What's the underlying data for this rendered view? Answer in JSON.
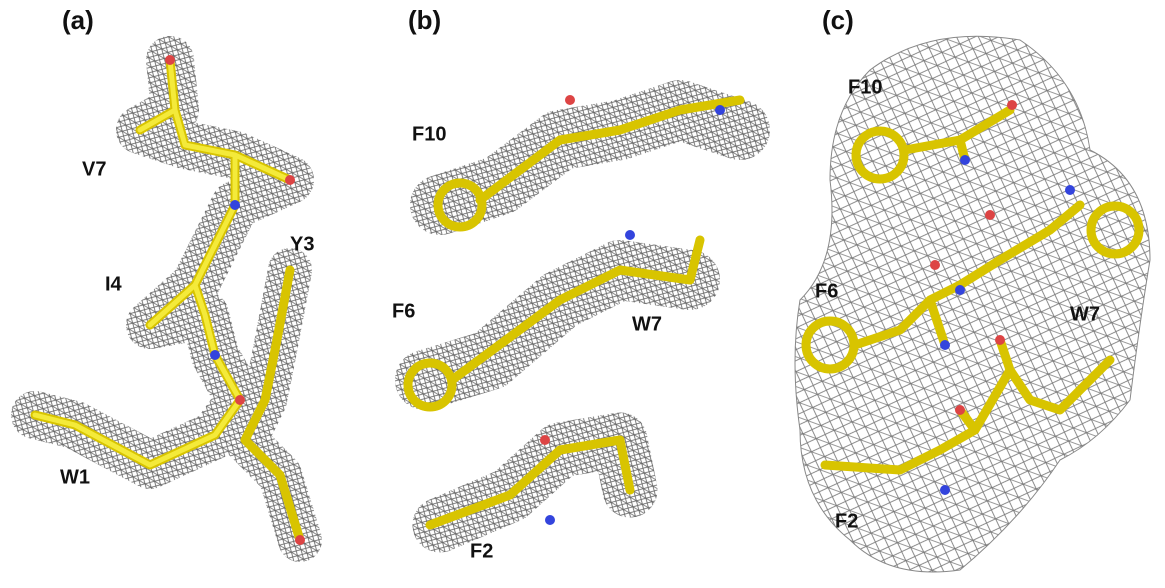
{
  "panels": [
    {
      "label": "(a)",
      "residues": [
        "V7",
        "Y3",
        "I4",
        "W1"
      ]
    },
    {
      "label": "(b)",
      "residues": [
        "F10",
        "F6",
        "W7",
        "F2"
      ]
    },
    {
      "label": "(c)",
      "residues": [
        "F10",
        "F6",
        "W7",
        "F2"
      ]
    }
  ]
}
